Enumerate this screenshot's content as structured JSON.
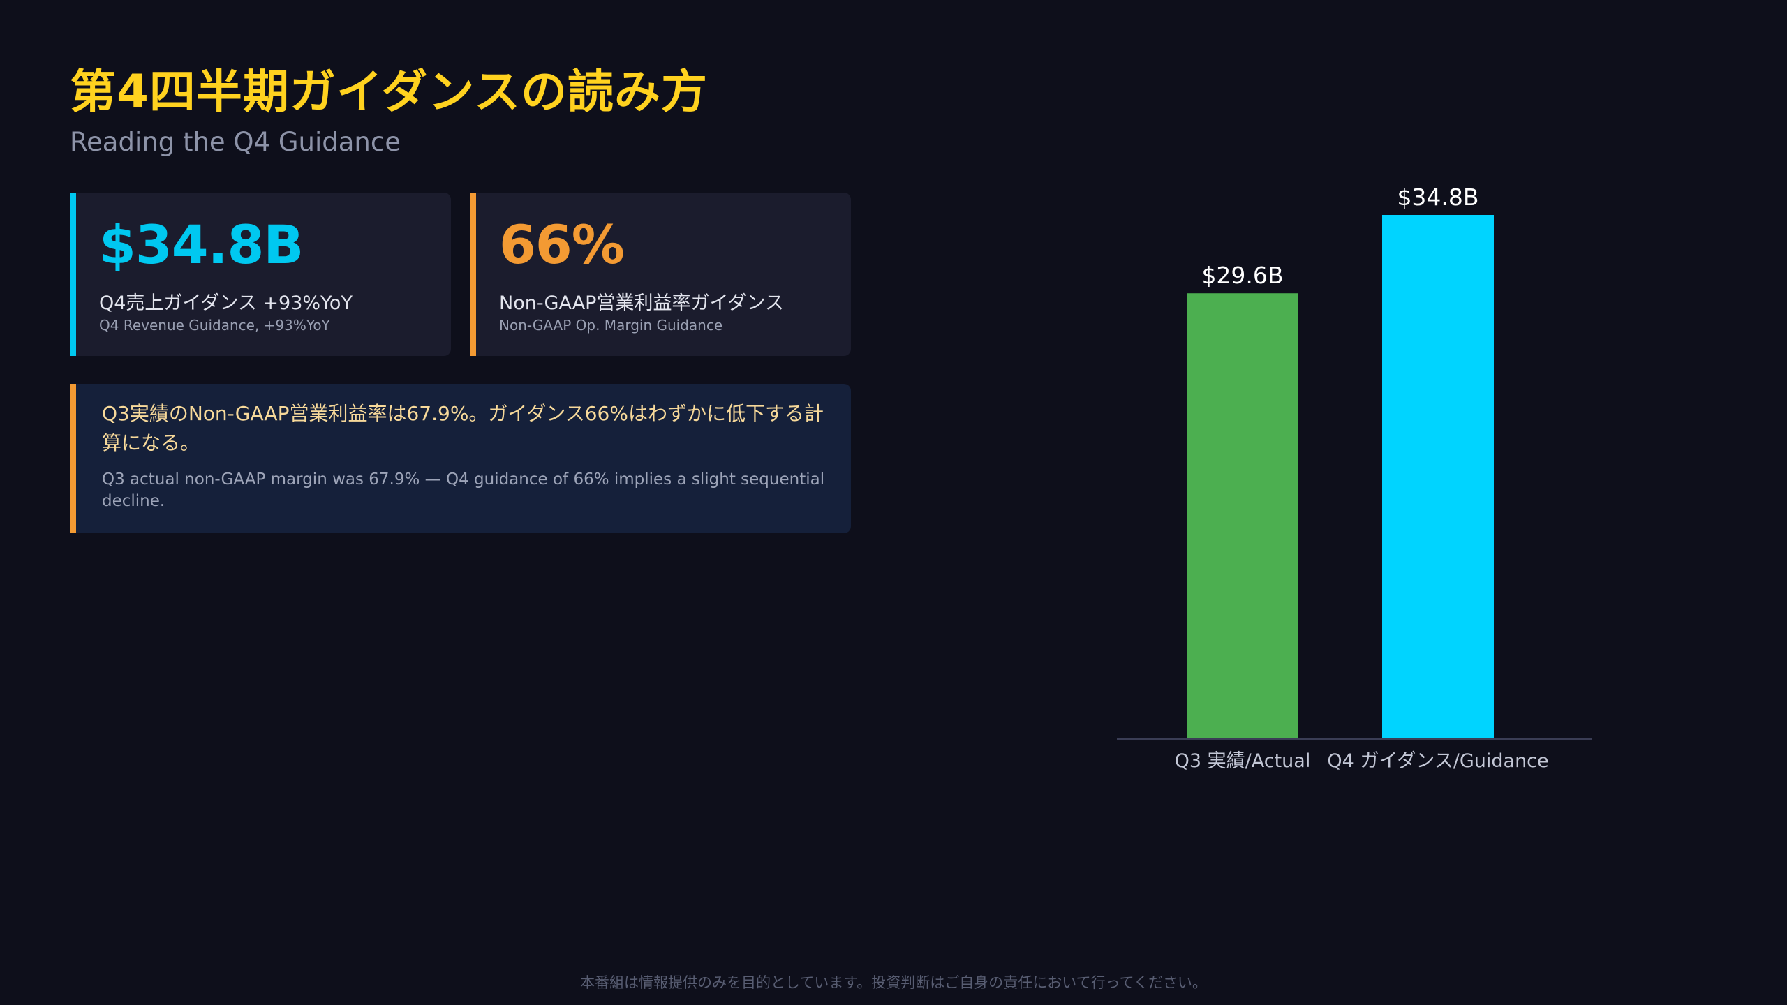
{
  "header": {
    "title": "第4四半期ガイダンスの読み方",
    "subtitle": "Reading the Q4 Guidance"
  },
  "cards": [
    {
      "value": "$34.8B",
      "label_ja": "Q4売上ガイダンス +93%YoY",
      "label_en": "Q4 Revenue Guidance, +93%YoY",
      "accent": "#00c8f0"
    },
    {
      "value": "66%",
      "label_ja": "Non-GAAP営業利益率ガイダンス",
      "label_en": "Non-GAAP Op. Margin Guidance",
      "accent": "#f39a33"
    }
  ],
  "note": {
    "ja": "Q3実績のNon-GAAP営業利益率は67.9%。ガイダンス66%はわずかに低下する計算になる。",
    "en": "Q3 actual non-GAAP margin was 67.9% — Q4 guidance of 66% implies a slight sequential decline.",
    "accent": "#f39a33"
  },
  "chart_data": {
    "type": "bar",
    "categories": [
      "Q3 実績/Actual",
      "Q4 ガイダンス/Guidance"
    ],
    "values": [
      29.6,
      34.8
    ],
    "data_labels": [
      "$29.6B",
      "$34.8B"
    ],
    "colors": [
      "#4caf50",
      "#00d4ff"
    ],
    "ylim": [
      0,
      34.8
    ],
    "grid": false,
    "legend": "none"
  },
  "footer": {
    "disclaimer": "本番組は情報提供のみを目的としています。投資判断はご自身の責任において行ってください。"
  }
}
